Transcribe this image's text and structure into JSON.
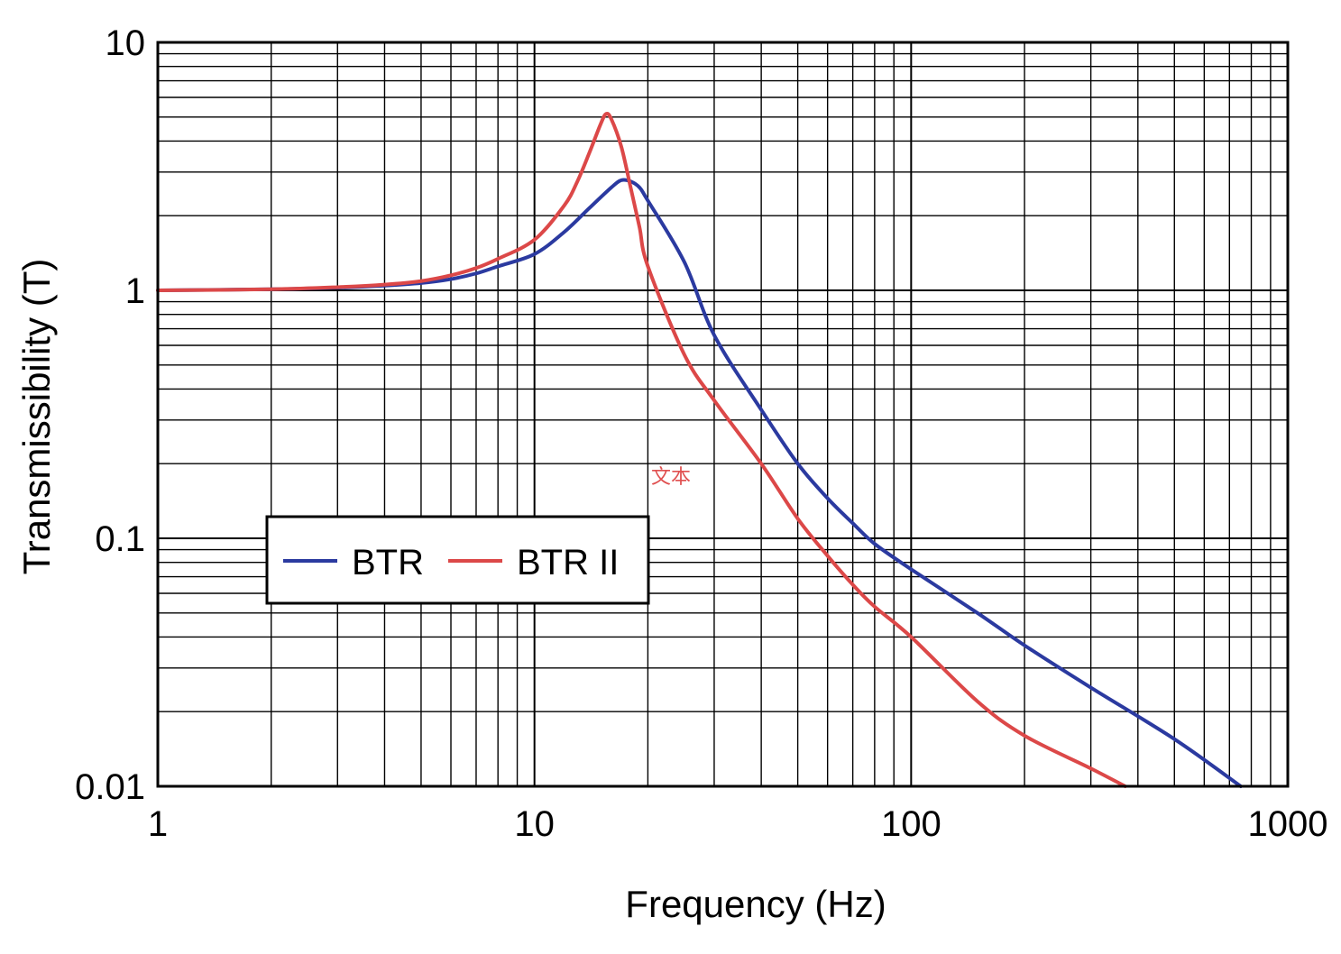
{
  "chart_data": {
    "type": "line",
    "xlabel": "Frequency (Hz)",
    "ylabel": "Transmissibility (T)",
    "x_scale": "log",
    "y_scale": "log",
    "xlim": [
      1,
      1000
    ],
    "ylim": [
      0.01,
      10
    ],
    "x_ticks": [
      "1",
      "10",
      "100",
      "1000"
    ],
    "y_ticks": [
      "0.01",
      "0.1",
      "1",
      "10"
    ],
    "grid": true,
    "legend_position": "lower-left",
    "annotation": "文本",
    "annotation_color": "#e05050",
    "series": [
      {
        "name": "BTR",
        "color": "#2b3aa0",
        "x": [
          1,
          2,
          3,
          4,
          5,
          6,
          7,
          8,
          10,
          12,
          14,
          16,
          17,
          18,
          19,
          20,
          25,
          30,
          40,
          50,
          60,
          70,
          80,
          100,
          150,
          200,
          300,
          500,
          750
        ],
        "y": [
          1.0,
          1.01,
          1.025,
          1.045,
          1.07,
          1.11,
          1.17,
          1.25,
          1.4,
          1.72,
          2.15,
          2.6,
          2.78,
          2.75,
          2.6,
          2.3,
          1.3,
          0.66,
          0.33,
          0.2,
          0.145,
          0.115,
          0.095,
          0.075,
          0.05,
          0.037,
          0.025,
          0.0155,
          0.01
        ]
      },
      {
        "name": "BTR II",
        "color": "#dc4848",
        "x": [
          1,
          2,
          3,
          4,
          5,
          6,
          7,
          8,
          10,
          12,
          13,
          14,
          15,
          15.5,
          16,
          17,
          18,
          19,
          20,
          25,
          30,
          40,
          50,
          60,
          70,
          80,
          100,
          150,
          200,
          300,
          370
        ],
        "y": [
          1.0,
          1.01,
          1.03,
          1.055,
          1.09,
          1.15,
          1.23,
          1.34,
          1.6,
          2.2,
          2.75,
          3.6,
          4.7,
          5.15,
          4.9,
          3.8,
          2.6,
          1.8,
          1.25,
          0.55,
          0.36,
          0.2,
          0.12,
          0.085,
          0.065,
          0.053,
          0.04,
          0.022,
          0.016,
          0.0118,
          0.01
        ]
      }
    ]
  }
}
